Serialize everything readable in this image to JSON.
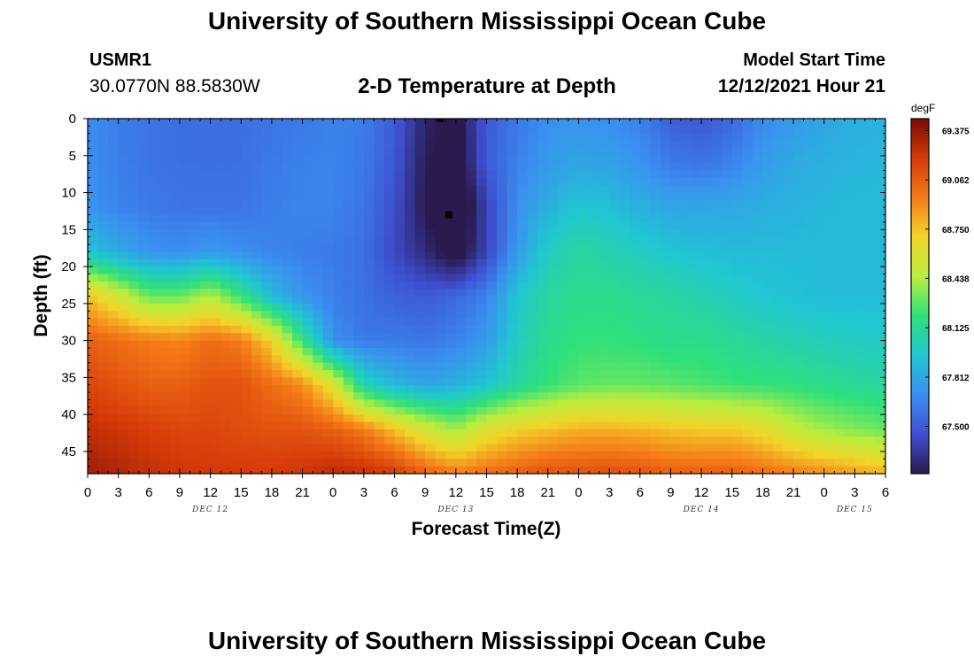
{
  "header": {
    "title": "University of Southern Mississippi Ocean Cube",
    "station_id": "USMR1",
    "station_location": "30.0770N  88.5830W",
    "plot_title": "2-D Temperature at Depth",
    "start_label": "Model Start Time",
    "start_value": "12/12/2021 Hour 21"
  },
  "footer": {
    "title": "University of Southern Mississippi Ocean Cube"
  },
  "chart_data": {
    "type": "heatmap",
    "title": "2-D Temperature at Depth",
    "xlabel": "Forecast Time(Z)",
    "ylabel": "Depth (ft)",
    "x_ticks": [
      "0",
      "3",
      "6",
      "9",
      "12",
      "15",
      "18",
      "21",
      "0",
      "3",
      "6",
      "9",
      "12",
      "15",
      "18",
      "21",
      "0",
      "3",
      "6",
      "9",
      "12",
      "15",
      "18",
      "21",
      "0",
      "3",
      "6"
    ],
    "x_range_hours": [
      0,
      78
    ],
    "day_labels": [
      {
        "text": "DEC 12",
        "hour": 12
      },
      {
        "text": "DEC 13",
        "hour": 36
      },
      {
        "text": "DEC 14",
        "hour": 60
      },
      {
        "text": "DEC 15",
        "hour": 75
      }
    ],
    "y_ticks": [
      0,
      5,
      10,
      15,
      20,
      25,
      30,
      35,
      40,
      45
    ],
    "ylim": [
      0,
      48
    ],
    "y_inverted": true,
    "colorbar": {
      "unit": "degF",
      "min": 67.2,
      "max": 69.45,
      "ticks": [
        "69.375",
        "69.062",
        "68.750",
        "68.438",
        "68.125",
        "67.812",
        "67.500"
      ],
      "tick_values": [
        69.375,
        69.062,
        68.75,
        68.438,
        68.125,
        67.812,
        67.5
      ],
      "colors": [
        "#2a1a4e",
        "#3e4fd0",
        "#3a8ff0",
        "#20c6d2",
        "#30e07a",
        "#b8ee3e",
        "#f2d42a",
        "#f57a18",
        "#d43a08",
        "#7a0a04"
      ]
    },
    "grid_x_hours": [
      0,
      3,
      6,
      9,
      12,
      15,
      18,
      21,
      24,
      27,
      30,
      33,
      36,
      39,
      42,
      45,
      48,
      51,
      54,
      57,
      60,
      63,
      66,
      69,
      72,
      75,
      78
    ],
    "grid_depth_ft": [
      0,
      6,
      12,
      18,
      24,
      30,
      36,
      42,
      48
    ],
    "values_degF": [
      [
        67.7,
        67.63,
        67.6,
        67.58,
        67.58,
        67.58,
        67.6,
        67.62,
        67.65,
        67.63,
        67.5,
        67.25,
        67.15,
        67.5,
        67.62,
        67.7,
        67.72,
        67.7,
        67.65,
        67.52,
        67.48,
        67.55,
        67.68,
        67.75,
        67.8,
        67.85,
        67.86
      ],
      [
        67.7,
        67.64,
        67.6,
        67.58,
        67.58,
        67.58,
        67.62,
        67.65,
        67.66,
        67.62,
        67.48,
        67.22,
        67.1,
        67.5,
        67.65,
        67.75,
        67.8,
        67.78,
        67.72,
        67.62,
        67.6,
        67.65,
        67.76,
        67.82,
        67.85,
        67.87,
        67.88
      ],
      [
        67.72,
        67.66,
        67.62,
        67.6,
        67.6,
        67.6,
        67.64,
        67.66,
        67.66,
        67.6,
        67.45,
        67.2,
        67.0,
        67.4,
        67.7,
        67.85,
        67.95,
        67.92,
        67.85,
        67.8,
        67.8,
        67.82,
        67.84,
        67.86,
        67.88,
        67.9,
        67.9
      ],
      [
        67.95,
        67.82,
        67.72,
        67.7,
        67.75,
        67.7,
        67.66,
        67.64,
        67.62,
        67.58,
        67.42,
        67.28,
        67.1,
        67.4,
        67.75,
        68.0,
        68.1,
        68.05,
        68.0,
        67.95,
        67.92,
        67.9,
        67.9,
        67.9,
        67.9,
        67.9,
        67.9
      ],
      [
        68.75,
        68.55,
        68.3,
        68.3,
        68.45,
        68.2,
        67.9,
        67.72,
        67.64,
        67.58,
        67.52,
        67.5,
        67.55,
        67.65,
        67.95,
        68.1,
        68.15,
        68.15,
        68.12,
        68.1,
        68.05,
        68.0,
        67.95,
        67.92,
        67.9,
        67.9,
        67.9
      ],
      [
        69.05,
        69.0,
        68.95,
        68.92,
        69.0,
        68.95,
        68.7,
        68.2,
        67.7,
        67.62,
        67.62,
        67.6,
        67.65,
        67.75,
        68.0,
        68.15,
        68.2,
        68.2,
        68.18,
        68.15,
        68.15,
        68.12,
        68.08,
        68.05,
        68.02,
        68.0,
        67.98
      ],
      [
        69.15,
        69.1,
        69.05,
        69.05,
        69.1,
        69.1,
        69.0,
        68.9,
        68.6,
        68.05,
        67.88,
        67.8,
        67.85,
        67.95,
        68.1,
        68.2,
        68.28,
        68.3,
        68.3,
        68.28,
        68.25,
        68.22,
        68.2,
        68.18,
        68.15,
        68.12,
        68.1
      ],
      [
        69.25,
        69.22,
        69.18,
        69.15,
        69.15,
        69.12,
        69.1,
        69.1,
        69.05,
        68.95,
        68.75,
        68.55,
        68.4,
        68.6,
        68.7,
        68.75,
        68.8,
        68.8,
        68.78,
        68.75,
        68.72,
        68.72,
        68.65,
        68.5,
        68.4,
        68.35,
        68.3
      ],
      [
        69.35,
        69.3,
        69.25,
        69.22,
        69.2,
        69.2,
        69.2,
        69.22,
        69.28,
        69.25,
        69.2,
        69.05,
        68.95,
        69.0,
        69.05,
        69.1,
        69.1,
        69.12,
        69.1,
        69.05,
        69.05,
        69.05,
        69.0,
        68.95,
        68.9,
        68.85,
        68.8
      ]
    ]
  }
}
